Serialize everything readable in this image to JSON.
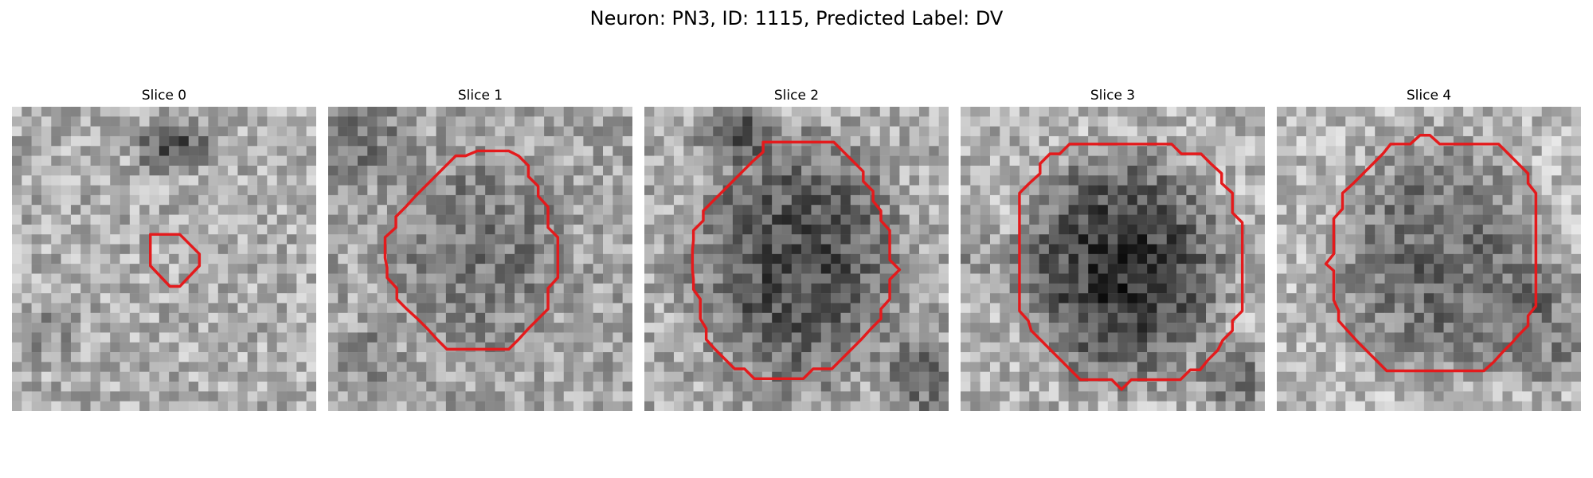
{
  "figure": {
    "title": "Neuron: PN3, ID: 1115, Predicted Label: DV"
  },
  "panels": [
    {
      "title": "Slice 0",
      "contour_color": "#e41a1c"
    },
    {
      "title": "Slice 1",
      "contour_color": "#e41a1c"
    },
    {
      "title": "Slice 2",
      "contour_color": "#e41a1c"
    },
    {
      "title": "Slice 3",
      "contour_color": "#e41a1c"
    },
    {
      "title": "Slice 4",
      "contour_color": "#e41a1c"
    }
  ]
}
